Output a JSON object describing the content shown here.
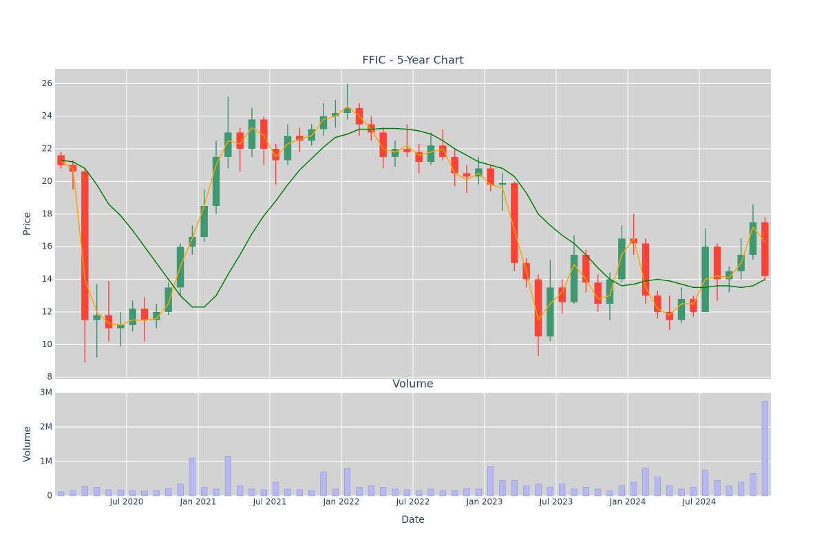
{
  "chart_data": [
    {
      "type": "candlestick",
      "title": "FFIC - 5-Year Chart",
      "ylabel": "Price",
      "x": [
        "2020-01",
        "2020-02",
        "2020-03",
        "2020-04",
        "2020-05",
        "2020-06",
        "2020-07",
        "2020-08",
        "2020-09",
        "2020-10",
        "2020-11",
        "2020-12",
        "2021-01",
        "2021-02",
        "2021-03",
        "2021-04",
        "2021-05",
        "2021-06",
        "2021-07",
        "2021-08",
        "2021-09",
        "2021-10",
        "2021-11",
        "2021-12",
        "2022-01",
        "2022-02",
        "2022-03",
        "2022-04",
        "2022-05",
        "2022-06",
        "2022-07",
        "2022-08",
        "2022-09",
        "2022-10",
        "2022-11",
        "2022-12",
        "2023-01",
        "2023-02",
        "2023-03",
        "2023-04",
        "2023-05",
        "2023-06",
        "2023-07",
        "2023-08",
        "2023-09",
        "2023-10",
        "2023-11",
        "2023-12",
        "2024-01",
        "2024-02",
        "2024-03",
        "2024-04",
        "2024-05",
        "2024-06",
        "2024-07",
        "2024-08",
        "2024-09",
        "2024-10",
        "2024-11",
        "2024-12"
      ],
      "open": [
        21.6,
        21.0,
        20.6,
        11.5,
        11.8,
        11.0,
        11.2,
        12.2,
        11.5,
        12.0,
        13.5,
        16.0,
        16.6,
        18.5,
        21.5,
        23.0,
        22.0,
        23.8,
        22.0,
        21.3,
        22.8,
        22.5,
        23.2,
        24.0,
        24.2,
        24.5,
        23.5,
        23.0,
        21.5,
        22.0,
        21.8,
        21.2,
        22.2,
        21.5,
        20.5,
        20.3,
        20.8,
        19.8,
        19.9,
        15.0,
        14.0,
        10.5,
        13.5,
        12.6,
        15.5,
        13.8,
        12.5,
        14.0,
        16.5,
        16.2,
        13.0,
        12.0,
        11.5,
        12.8,
        12.0,
        16.0,
        14.0,
        14.5,
        15.5,
        17.5
      ],
      "high": [
        21.8,
        21.3,
        20.8,
        13.7,
        13.9,
        12.0,
        12.7,
        12.9,
        12.5,
        13.8,
        16.2,
        17.3,
        19.5,
        22.5,
        25.2,
        23.3,
        24.5,
        24.0,
        22.3,
        23.5,
        23.3,
        23.5,
        24.8,
        25.0,
        26.0,
        24.8,
        24.0,
        23.3,
        22.5,
        23.5,
        22.3,
        23.0,
        23.2,
        22.0,
        21.0,
        21.5,
        21.0,
        20.5,
        20.0,
        15.3,
        14.3,
        15.2,
        14.0,
        16.7,
        15.8,
        14.3,
        14.4,
        17.3,
        18.0,
        16.5,
        13.3,
        13.0,
        13.5,
        13.0,
        17.1,
        16.2,
        14.8,
        16.5,
        18.6,
        17.8
      ],
      "low": [
        20.8,
        19.5,
        8.9,
        9.2,
        10.2,
        9.9,
        10.8,
        10.2,
        11.0,
        11.8,
        13.0,
        15.5,
        16.3,
        18.0,
        20.8,
        20.6,
        21.5,
        21.0,
        19.8,
        21.0,
        21.8,
        22.2,
        22.8,
        23.3,
        23.8,
        22.8,
        22.5,
        20.8,
        20.9,
        21.5,
        20.5,
        21.0,
        21.3,
        19.7,
        19.3,
        19.8,
        19.4,
        18.2,
        14.5,
        13.5,
        9.3,
        10.2,
        11.9,
        12.5,
        13.2,
        12.0,
        11.5,
        13.8,
        15.5,
        12.5,
        11.6,
        10.9,
        11.3,
        11.7,
        12.0,
        12.7,
        13.2,
        14.0,
        15.2,
        13.9
      ],
      "close": [
        21.0,
        20.6,
        11.5,
        11.8,
        11.0,
        11.2,
        12.2,
        11.5,
        12.0,
        13.5,
        16.0,
        16.6,
        18.5,
        21.5,
        23.0,
        22.0,
        23.8,
        22.0,
        21.3,
        22.8,
        22.5,
        23.2,
        24.0,
        24.2,
        24.5,
        23.5,
        23.0,
        21.5,
        22.0,
        21.8,
        21.2,
        22.2,
        21.5,
        20.5,
        20.3,
        20.8,
        19.8,
        19.9,
        15.0,
        14.0,
        10.5,
        13.5,
        12.6,
        15.5,
        13.8,
        12.5,
        14.0,
        16.5,
        16.2,
        13.0,
        12.0,
        11.5,
        12.8,
        12.0,
        16.0,
        14.0,
        14.5,
        15.5,
        17.5,
        14.2
      ],
      "increasing_color": "#3d9970",
      "decreasing_color": "#ff4136",
      "series": [
        {
          "color": "orange",
          "values": [
            21.2,
            20.8,
            14,
            12,
            11.3,
            11.2,
            11.5,
            11.5,
            11.6,
            12.5,
            14.8,
            16.5,
            18.5,
            21,
            22.5,
            22.3,
            23.3,
            22.8,
            21.5,
            22.3,
            22.6,
            22.8,
            23.8,
            24.0,
            24.6,
            24.0,
            23.2,
            22.0,
            21.8,
            22.2,
            21.6,
            21.8,
            22.0,
            20.5,
            20.1,
            20.5,
            19.8,
            19.6,
            17,
            14.5,
            11.5,
            12.5,
            13.2,
            14.9,
            14,
            12.8,
            13,
            15.5,
            16.5,
            13.5,
            12.2,
            11.8,
            12.5,
            12.5,
            14.0,
            14.2,
            14.1,
            15.0,
            17.2,
            16.3
          ]
        },
        {
          "color": "green",
          "values": [
            21.3,
            21.2,
            20.8,
            19.8,
            18.6,
            17.9,
            17.0,
            16.0,
            15.0,
            14.0,
            13.0,
            12.3,
            12.3,
            13.0,
            14.3,
            15.5,
            16.8,
            17.9,
            18.8,
            19.8,
            20.7,
            21.4,
            22.1,
            22.7,
            22.9,
            23.2,
            23.2,
            23.25,
            23.25,
            23.2,
            23.1,
            22.9,
            22.5,
            22.0,
            21.6,
            21.2,
            21.0,
            20.8,
            20.3,
            19.3,
            18.0,
            17.3,
            16.7,
            16.2,
            15.5,
            14.7,
            14.0,
            13.6,
            13.7,
            13.9,
            14.0,
            13.9,
            13.7,
            13.5,
            13.5,
            13.6,
            13.6,
            13.5,
            13.6,
            14.0
          ]
        }
      ],
      "xlim": [
        "2020-01",
        "2025-01"
      ],
      "ylim": [
        7.9,
        26.9
      ],
      "yticks": [
        8,
        10,
        12,
        14,
        16,
        18,
        20,
        22,
        24,
        26
      ],
      "grid": true,
      "background": "#d3d3d3"
    },
    {
      "type": "bar",
      "title": "Volume",
      "ylabel": "Volume",
      "xlabel": "Date",
      "x": [
        "2020-01",
        "2020-02",
        "2020-03",
        "2020-04",
        "2020-05",
        "2020-06",
        "2020-07",
        "2020-08",
        "2020-09",
        "2020-10",
        "2020-11",
        "2020-12",
        "2021-01",
        "2021-02",
        "2021-03",
        "2021-04",
        "2021-05",
        "2021-06",
        "2021-07",
        "2021-08",
        "2021-09",
        "2021-10",
        "2021-11",
        "2021-12",
        "2022-01",
        "2022-02",
        "2022-03",
        "2022-04",
        "2022-05",
        "2022-06",
        "2022-07",
        "2022-08",
        "2022-09",
        "2022-10",
        "2022-11",
        "2022-12",
        "2023-01",
        "2023-02",
        "2023-03",
        "2023-04",
        "2023-05",
        "2023-06",
        "2023-07",
        "2023-08",
        "2023-09",
        "2023-10",
        "2023-11",
        "2023-12",
        "2024-01",
        "2024-02",
        "2024-03",
        "2024-04",
        "2024-05",
        "2024-06",
        "2024-07",
        "2024-08",
        "2024-09",
        "2024-10",
        "2024-11",
        "2024-12"
      ],
      "values": [
        120000,
        150000,
        280000,
        250000,
        180000,
        170000,
        150000,
        140000,
        150000,
        220000,
        350000,
        1100000,
        250000,
        200000,
        1150000,
        300000,
        200000,
        180000,
        400000,
        200000,
        180000,
        150000,
        700000,
        200000,
        800000,
        250000,
        300000,
        250000,
        200000,
        180000,
        150000,
        200000,
        150000,
        160000,
        220000,
        200000,
        850000,
        450000,
        450000,
        300000,
        350000,
        250000,
        350000,
        200000,
        250000,
        200000,
        150000,
        300000,
        400000,
        800000,
        550000,
        300000,
        200000,
        250000,
        750000,
        450000,
        300000,
        400000,
        650000,
        2750000
      ],
      "color": "#b8b8f0",
      "xlim": [
        "2020-01",
        "2025-01"
      ],
      "ylim": [
        0,
        3000000
      ],
      "yticks": [
        0,
        {
          "value": 1000000,
          "label": "1M"
        },
        {
          "value": 2000000,
          "label": "2M"
        },
        {
          "value": 3000000,
          "label": "3M"
        }
      ],
      "xticks": [
        {
          "value": "2020-07",
          "label": "Jul 2020"
        },
        {
          "value": "2021-01",
          "label": "Jan 2021"
        },
        {
          "value": "2021-07",
          "label": "Jul 2021"
        },
        {
          "value": "2022-01",
          "label": "Jan 2022"
        },
        {
          "value": "2022-07",
          "label": "Jul 2022"
        },
        {
          "value": "2023-01",
          "label": "Jan 2023"
        },
        {
          "value": "2023-07",
          "label": "Jul 2023"
        },
        {
          "value": "2024-01",
          "label": "Jan 2024"
        },
        {
          "value": "2024-07",
          "label": "Jul 2024"
        }
      ],
      "grid": true,
      "background": "#d3d3d3"
    }
  ]
}
